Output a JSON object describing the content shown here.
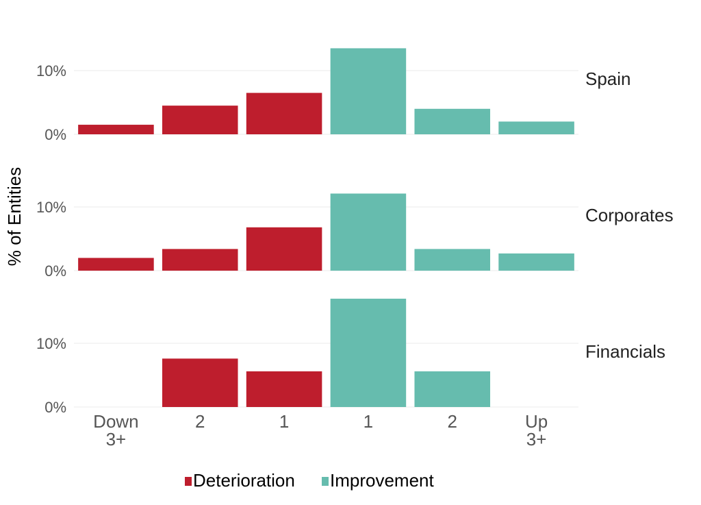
{
  "chart_data": {
    "type": "bar",
    "ylabel": "% of Entities",
    "xlabel": "",
    "categories": [
      "Down\n3+",
      "2",
      "1",
      "1",
      "2",
      "Up\n3+"
    ],
    "y_ticks": [
      "0%",
      "10%"
    ],
    "ylim": [
      0,
      0.14
    ],
    "colors": {
      "Deterioration": "#be1e2d",
      "Improvement": "#66bcae"
    },
    "bar_groups": [
      "Deterioration",
      "Deterioration",
      "Deterioration",
      "Improvement",
      "Improvement",
      "Improvement"
    ],
    "legend": {
      "position": "bottom",
      "items": [
        "Deterioration",
        "Improvement"
      ]
    },
    "facets": [
      {
        "name": "Spain",
        "values": [
          0.015,
          0.045,
          0.065,
          0.135,
          0.04,
          0.02
        ]
      },
      {
        "name": "Corporates",
        "values": [
          0.02,
          0.034,
          0.068,
          0.121,
          0.034,
          0.027
        ]
      },
      {
        "name": "Financials",
        "values": [
          0.0,
          0.076,
          0.056,
          0.17,
          0.056,
          0.0
        ]
      }
    ]
  }
}
